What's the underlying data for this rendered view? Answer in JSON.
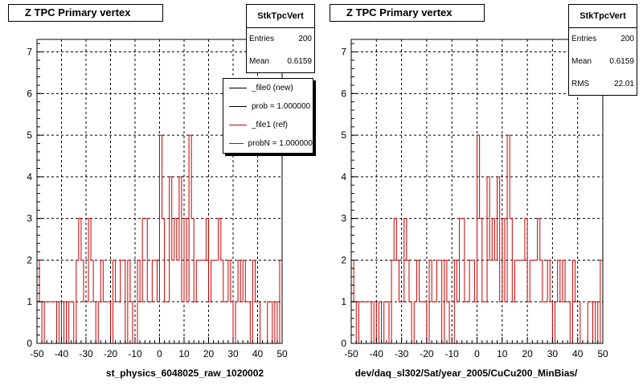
{
  "left_panel": {
    "title": "Z TPC Primary vertex",
    "stats": {
      "name": "StkTpcVert",
      "rows": [
        {
          "label": "Entries",
          "value": "200"
        },
        {
          "label": "Mean",
          "value": "0.6159"
        }
      ]
    },
    "legend": [
      {
        "label": "_file0 (new)",
        "color": "#000000"
      },
      {
        "label": "prob = 1.000000",
        "color": "#000000"
      },
      {
        "label": "_file1 (ref)",
        "color": "#cc0000"
      },
      {
        "label": "probN = 1.000000",
        "color": "#cc0000"
      }
    ],
    "x_title": "st_physics_6048025_raw_1020002"
  },
  "right_panel": {
    "title": "Z TPC Primary vertex",
    "stats": {
      "name": "StkTpcVert",
      "rows": [
        {
          "label": "Entries",
          "value": "200"
        },
        {
          "label": "Mean",
          "value": "0.6159"
        },
        {
          "label": "RMS",
          "value": "22.01"
        }
      ]
    },
    "x_title": "dev/daq_sl302/Sat/year_2005/CuCu200_MinBias/"
  },
  "chart_data": [
    {
      "type": "histogram",
      "title": "Z TPC Primary vertex",
      "xlabel": "st_physics_6048025_raw_1020002",
      "ylabel": "",
      "xlim": [
        -50,
        50
      ],
      "ylim": [
        0,
        7.3
      ],
      "x_ticks": [
        -50,
        -40,
        -30,
        -20,
        -10,
        0,
        10,
        20,
        30,
        40,
        50
      ],
      "y_ticks": [
        0,
        1,
        2,
        3,
        4,
        5,
        6,
        7
      ],
      "grid": true,
      "bin_edges_start": -50,
      "bin_width": 1,
      "series": [
        {
          "name": "_file1 (ref)",
          "color": "#cc0000",
          "values": [
            2,
            1,
            0,
            1,
            1,
            1,
            1,
            1,
            0,
            1,
            0,
            1,
            0,
            1,
            1,
            0,
            2,
            3,
            2,
            1,
            1,
            3,
            2,
            1,
            0,
            1,
            2,
            1,
            1,
            1,
            0,
            2,
            1,
            1,
            2,
            2,
            0,
            2,
            1,
            0,
            0,
            2,
            1,
            3,
            3,
            1,
            1,
            2,
            2,
            1,
            5,
            3,
            1,
            1,
            4,
            2,
            3,
            2,
            4,
            1,
            3,
            1,
            5,
            3,
            1,
            2,
            2,
            2,
            2,
            3,
            1,
            2,
            2,
            2,
            3,
            2,
            1,
            1,
            2,
            1,
            0,
            1,
            2,
            1,
            2,
            1,
            1,
            0,
            2,
            1,
            1,
            0,
            0,
            0,
            1,
            1,
            0,
            1,
            0,
            2
          ]
        }
      ]
    },
    {
      "type": "histogram",
      "title": "Z TPC Primary vertex",
      "xlabel": "dev/daq_sl302/Sat/year_2005/CuCu200_MinBias/",
      "ylabel": "",
      "xlim": [
        -50,
        50
      ],
      "ylim": [
        0,
        7.3
      ],
      "x_ticks": [
        -50,
        -40,
        -30,
        -20,
        -10,
        0,
        10,
        20,
        30,
        40,
        50
      ],
      "y_ticks": [
        0,
        1,
        2,
        3,
        4,
        5,
        6,
        7
      ],
      "grid": true,
      "bin_edges_start": -50,
      "bin_width": 1,
      "series": [
        {
          "name": "",
          "color": "#cc0000",
          "values": [
            2,
            1,
            0,
            1,
            1,
            1,
            1,
            1,
            0,
            1,
            0,
            1,
            0,
            1,
            1,
            0,
            2,
            3,
            2,
            1,
            1,
            3,
            2,
            1,
            0,
            1,
            2,
            1,
            1,
            1,
            0,
            2,
            1,
            1,
            2,
            2,
            0,
            2,
            1,
            0,
            0,
            2,
            1,
            3,
            3,
            1,
            1,
            2,
            2,
            1,
            5,
            3,
            1,
            1,
            4,
            2,
            3,
            2,
            4,
            1,
            3,
            1,
            5,
            3,
            1,
            2,
            2,
            2,
            2,
            3,
            1,
            2,
            2,
            2,
            3,
            2,
            1,
            1,
            2,
            1,
            0,
            1,
            2,
            1,
            2,
            1,
            1,
            0,
            2,
            1,
            1,
            0,
            0,
            0,
            1,
            1,
            0,
            1,
            0,
            2
          ]
        }
      ]
    }
  ]
}
